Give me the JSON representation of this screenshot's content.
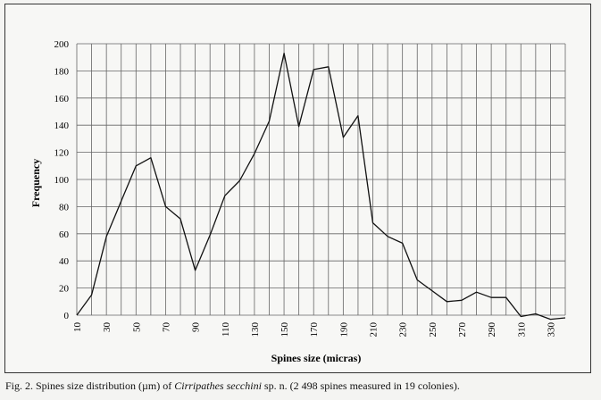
{
  "chart_data": {
    "type": "line",
    "xlabel": "Spines size (micras)",
    "ylabel": "Frequency",
    "ylim": [
      0,
      200
    ],
    "yticks": [
      0,
      20,
      40,
      60,
      80,
      100,
      120,
      140,
      160,
      180,
      200
    ],
    "xlim": [
      10,
      340
    ],
    "xticks": [
      10,
      30,
      50,
      70,
      90,
      110,
      130,
      150,
      170,
      190,
      210,
      230,
      250,
      270,
      290,
      310,
      330
    ],
    "grid": true,
    "series": [
      {
        "x": [
          10,
          20,
          30,
          40,
          50,
          60,
          70,
          80,
          90,
          100,
          110,
          120,
          130,
          140,
          150,
          160,
          170,
          180,
          190,
          200,
          210,
          220,
          230,
          240,
          250,
          260,
          270,
          280,
          290,
          300,
          310,
          320,
          330,
          340
        ],
        "values": [
          0,
          15,
          58,
          84,
          110,
          116,
          80,
          71,
          33,
          59,
          88,
          99,
          119,
          143,
          193,
          139,
          181,
          183,
          131,
          147,
          68,
          58,
          53,
          26,
          18,
          10,
          11,
          17,
          13,
          13,
          -1,
          1,
          -3,
          -2
        ]
      }
    ]
  },
  "caption": {
    "prefix": "Fig. 2. Spines size distribution (µm) of ",
    "species": "Cirripathes secchini",
    "suffix": " sp. n. (2 498 spines measured in 19 colonies)."
  }
}
